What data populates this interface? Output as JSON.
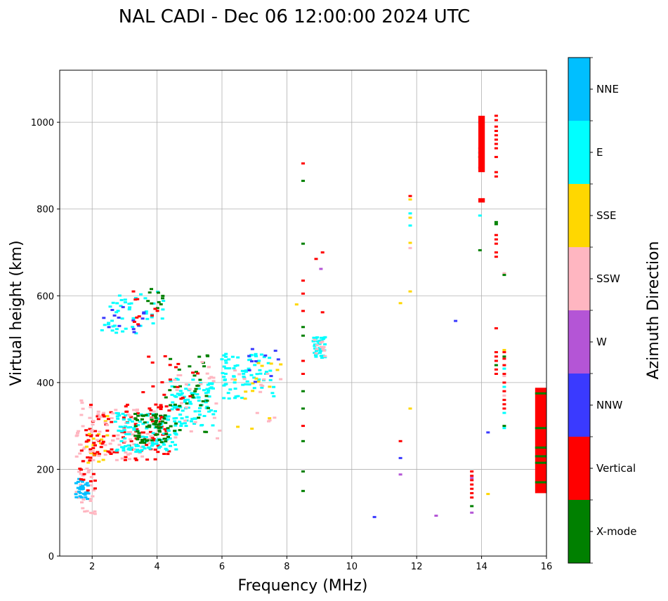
{
  "chart_data": {
    "type": "scatter",
    "title": "NAL CADI - Dec 06 12:00:00 2024 UTC",
    "xlabel": "Frequency (MHz)",
    "ylabel": "Virtual height (km)",
    "xlim": [
      1,
      16
    ],
    "ylim": [
      0,
      1120
    ],
    "xticks": [
      2,
      4,
      6,
      8,
      10,
      12,
      14,
      16
    ],
    "yticks": [
      0,
      200,
      400,
      600,
      800,
      1000
    ],
    "grid": true,
    "colorbar": {
      "label": "Azimuth Direction",
      "categories": [
        {
          "name": "X-mode",
          "color": "#008000"
        },
        {
          "name": "Vertical",
          "color": "#ff0000"
        },
        {
          "name": "NNW",
          "color": "#3a3aff"
        },
        {
          "name": "W",
          "color": "#b455d6"
        },
        {
          "name": "SSW",
          "color": "#ffb6c1"
        },
        {
          "name": "SSE",
          "color": "#ffd700"
        },
        {
          "name": "E",
          "color": "#00ffff"
        },
        {
          "name": "NNE",
          "color": "#00bfff"
        }
      ]
    },
    "echo_regions": [
      {
        "dir": "SSW",
        "f": [
          1.5,
          2.1
        ],
        "h": [
          90,
          360
        ],
        "n": 50,
        "seed": 11
      },
      {
        "dir": "NNE",
        "f": [
          1.5,
          1.9
        ],
        "h": [
          130,
          180
        ],
        "n": 30,
        "seed": 12
      },
      {
        "dir": "Vertical",
        "f": [
          1.6,
          2.1
        ],
        "h": [
          150,
          300
        ],
        "n": 20,
        "seed": 13
      },
      {
        "dir": "SSE",
        "f": [
          1.7,
          2.6
        ],
        "h": [
          210,
          340
        ],
        "n": 18,
        "seed": 14
      },
      {
        "dir": "Vertical",
        "f": [
          1.8,
          4.4
        ],
        "h": [
          220,
          350
        ],
        "n": 110,
        "seed": 15
      },
      {
        "dir": "SSW",
        "f": [
          1.9,
          4.0
        ],
        "h": [
          220,
          340
        ],
        "n": 60,
        "seed": 16
      },
      {
        "dir": "E",
        "f": [
          2.7,
          4.6
        ],
        "h": [
          240,
          330
        ],
        "n": 120,
        "seed": 17
      },
      {
        "dir": "X-mode",
        "f": [
          3.3,
          4.3
        ],
        "h": [
          260,
          330
        ],
        "n": 60,
        "seed": 18
      },
      {
        "dir": "E",
        "f": [
          4.4,
          5.8
        ],
        "h": [
          300,
          410
        ],
        "n": 90,
        "seed": 19
      },
      {
        "dir": "X-mode",
        "f": [
          4.2,
          5.6
        ],
        "h": [
          270,
          470
        ],
        "n": 40,
        "seed": 20
      },
      {
        "dir": "Vertical",
        "f": [
          3.5,
          5.4
        ],
        "h": [
          320,
          480
        ],
        "n": 22,
        "seed": 21
      },
      {
        "dir": "SSW",
        "f": [
          4.5,
          6.0
        ],
        "h": [
          260,
          450
        ],
        "n": 25,
        "seed": 22
      },
      {
        "dir": "E",
        "f": [
          6.0,
          7.6
        ],
        "h": [
          360,
          470
        ],
        "n": 80,
        "seed": 23
      },
      {
        "dir": "SSE",
        "f": [
          6.3,
          8.0
        ],
        "h": [
          290,
          450
        ],
        "n": 16,
        "seed": 24
      },
      {
        "dir": "NNW",
        "f": [
          6.8,
          7.8
        ],
        "h": [
          400,
          490
        ],
        "n": 10,
        "seed": 25
      },
      {
        "dir": "SSW",
        "f": [
          6.3,
          7.9
        ],
        "h": [
          300,
          470
        ],
        "n": 14,
        "seed": 26
      },
      {
        "dir": "E",
        "f": [
          2.3,
          4.2
        ],
        "h": [
          510,
          610
        ],
        "n": 45,
        "seed": 27
      },
      {
        "dir": "NNW",
        "f": [
          2.3,
          3.6
        ],
        "h": [
          510,
          580
        ],
        "n": 14,
        "seed": 28
      },
      {
        "dir": "X-mode",
        "f": [
          3.7,
          4.2
        ],
        "h": [
          570,
          620
        ],
        "n": 10,
        "seed": 29
      },
      {
        "dir": "Vertical",
        "f": [
          3.0,
          4.1
        ],
        "h": [
          530,
          610
        ],
        "n": 10,
        "seed": 30
      },
      {
        "dir": "E",
        "f": [
          8.8,
          9.2
        ],
        "h": [
          455,
          505
        ],
        "n": 40,
        "seed": 31
      },
      {
        "dir": "SSW",
        "f": [
          8.8,
          9.2
        ],
        "h": [
          460,
          500
        ],
        "n": 12,
        "seed": 32
      }
    ],
    "echo_points": [
      {
        "dir": "Vertical",
        "f": 8.5,
        "h": [
          905,
          635,
          605,
          565,
          450,
          420,
          300
        ]
      },
      {
        "dir": "X-mode",
        "f": 8.5,
        "h": [
          865,
          720,
          528,
          508,
          380,
          340,
          265,
          195,
          150
        ]
      },
      {
        "dir": "Vertical",
        "f": 9.1,
        "h": [
          700,
          562
        ]
      },
      {
        "dir": "Vertical",
        "f": 8.9,
        "h": [
          685
        ]
      },
      {
        "dir": "W",
        "f": 9.05,
        "h": [
          662
        ]
      },
      {
        "dir": "SSE",
        "f": 8.3,
        "h": [
          580
        ]
      },
      {
        "dir": "Vertical",
        "f": 11.8,
        "h": [
          830
        ]
      },
      {
        "dir": "SSE",
        "f": 11.8,
        "h": [
          822,
          780,
          722,
          610,
          340
        ]
      },
      {
        "dir": "E",
        "f": 11.8,
        "h": [
          790,
          762
        ]
      },
      {
        "dir": "SSW",
        "f": 11.8,
        "h": [
          710
        ]
      },
      {
        "dir": "SSE",
        "f": 11.5,
        "h": [
          583
        ]
      },
      {
        "dir": "Vertical",
        "f": 11.5,
        "h": [
          265
        ]
      },
      {
        "dir": "NNW",
        "f": 11.5,
        "h": [
          226
        ]
      },
      {
        "dir": "W",
        "f": 11.5,
        "h": [
          188
        ]
      },
      {
        "dir": "NNW",
        "f": 13.2,
        "h": [
          542
        ]
      },
      {
        "dir": "NNW",
        "f": 10.7,
        "h": [
          90
        ]
      },
      {
        "dir": "W",
        "f": 12.6,
        "h": [
          93
        ]
      },
      {
        "dir": "NNW",
        "f": 14.2,
        "h": [
          285
        ]
      },
      {
        "dir": "SSE",
        "f": 14.2,
        "h": [
          143
        ]
      },
      {
        "dir": "Vertical",
        "f": 13.7,
        "h": [
          195,
          185,
          175,
          165,
          155,
          145,
          135
        ]
      },
      {
        "dir": "X-mode",
        "f": 13.7,
        "h": [
          115
        ]
      },
      {
        "dir": "W",
        "f": 13.7,
        "h": [
          100,
          180
        ]
      },
      {
        "dir": "Vertical",
        "f": 14.45,
        "h": [
          1015,
          1005,
          990,
          980,
          970,
          960,
          950,
          940,
          920,
          885,
          875,
          740,
          730,
          720,
          700,
          690,
          525,
          470,
          460,
          450,
          430,
          420
        ]
      },
      {
        "dir": "X-mode",
        "f": 14.45,
        "h": [
          770,
          765,
          440
        ]
      },
      {
        "dir": "Vertical",
        "f": 14.7,
        "h": [
          470,
          455,
          440,
          420,
          400,
          380,
          360,
          350,
          340
        ]
      },
      {
        "dir": "E",
        "f": 14.7,
        "h": [
          432,
          390,
          330,
          295
        ]
      },
      {
        "dir": "SSW",
        "f": 14.7,
        "h": [
          652,
          415,
          370
        ]
      },
      {
        "dir": "X-mode",
        "f": 14.7,
        "h": [
          648,
          460,
          300
        ]
      },
      {
        "dir": "SSE",
        "f": 14.7,
        "h": [
          475
        ]
      },
      {
        "dir": "NNE",
        "f": 13.95,
        "h": [
          1000,
          930
        ]
      },
      {
        "dir": "E",
        "f": 13.95,
        "h": [
          785
        ]
      },
      {
        "dir": "X-mode",
        "f": 13.95,
        "h": [
          920,
          705
        ]
      },
      {
        "dir": "W",
        "f": 13.95,
        "h": [
          940,
          895
        ]
      }
    ],
    "echo_blocks": [
      {
        "dir": "Vertical",
        "f": [
          13.9,
          14.1
        ],
        "h": [
          885,
          1015
        ]
      },
      {
        "dir": "Vertical",
        "f": [
          13.9,
          14.1
        ],
        "h": [
          815,
          825
        ]
      },
      {
        "dir": "Vertical",
        "f": [
          15.65,
          16.0
        ],
        "h": [
          145,
          388
        ]
      }
    ],
    "echo_stripes": [
      {
        "dir": "X-mode",
        "f": [
          15.65,
          16.0
        ],
        "h": [
          375,
          295,
          250,
          230,
          215,
          170
        ]
      }
    ]
  }
}
